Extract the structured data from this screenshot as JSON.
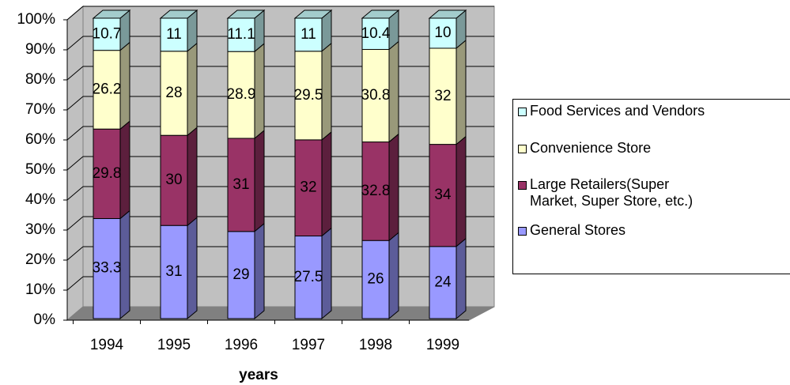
{
  "chart_data": {
    "type": "stacked-bar-3d",
    "x_label": "years",
    "categories": [
      "1994",
      "1995",
      "1996",
      "1997",
      "1998",
      "1999"
    ],
    "series": [
      {
        "name": "General Stores",
        "color": "#9999ff",
        "values": [
          33.3,
          31,
          29,
          27.5,
          26,
          24
        ]
      },
      {
        "name": "Large Retailers(Super Market, Super Store, etc.)",
        "color": "#993366",
        "values": [
          29.8,
          30,
          31,
          32,
          32.8,
          34
        ]
      },
      {
        "name": "Convenience Store",
        "color": "#ffffcc",
        "values": [
          26.2,
          28,
          28.9,
          29.5,
          30.8,
          32
        ]
      },
      {
        "name": "Food Services and Vendors",
        "color": "#ccffff",
        "values": [
          10.7,
          11,
          11.1,
          11,
          10.4,
          10
        ]
      }
    ],
    "ylim": [
      0,
      100
    ],
    "yticks": [
      {
        "value": 0,
        "label": "0%"
      },
      {
        "value": 10,
        "label": "10%"
      },
      {
        "value": 20,
        "label": "20%"
      },
      {
        "value": 30,
        "label": "30%"
      },
      {
        "value": 40,
        "label": "40%"
      },
      {
        "value": 50,
        "label": "50%"
      },
      {
        "value": 60,
        "label": "60%"
      },
      {
        "value": 70,
        "label": "70%"
      },
      {
        "value": 80,
        "label": "80%"
      },
      {
        "value": 90,
        "label": "90%"
      },
      {
        "value": 100,
        "label": "100%"
      }
    ],
    "grid": true,
    "legend": "right"
  }
}
